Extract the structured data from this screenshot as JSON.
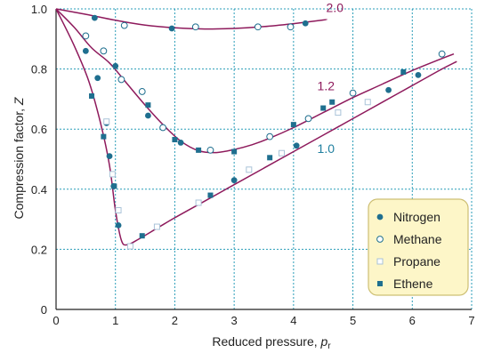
{
  "chart_data": {
    "type": "scatter",
    "xlabel_main": "Reduced pressure, ",
    "xlabel_italic": "p",
    "xlabel_sub": "r",
    "ylabel_main": "Compression factor, ",
    "ylabel_italic": "Z",
    "xlim": [
      0,
      7
    ],
    "ylim": [
      0,
      1.0
    ],
    "x_ticks": [
      "0",
      "1",
      "2",
      "3",
      "4",
      "5",
      "6",
      "7"
    ],
    "y_ticks": [
      "0",
      "0.2",
      "0.4",
      "0.6",
      "0.8",
      "1.0"
    ],
    "grid": true,
    "legend_position": "bottom-right",
    "colors": {
      "curve": "#8e1a5c",
      "grid": "#2a9db8",
      "marker": "#1f6f8f",
      "marker_light": "#a9c3d8",
      "legend_bg": "#fdf6c8",
      "legend_border": "#cdbf73",
      "label_2_0": "#8e1a5c",
      "label_1_2": "#8e1a5c",
      "label_1_0": "#1f7f9f"
    },
    "curves": [
      {
        "label": "2.0",
        "label_color_key": "label_2_0",
        "points": [
          [
            0,
            1.0
          ],
          [
            0.5,
            0.982
          ],
          [
            1.0,
            0.962
          ],
          [
            1.5,
            0.946
          ],
          [
            2.0,
            0.937
          ],
          [
            2.5,
            0.933
          ],
          [
            3.0,
            0.935
          ],
          [
            3.5,
            0.941
          ],
          [
            4.0,
            0.951
          ],
          [
            4.5,
            0.963
          ],
          [
            4.55,
            0.965
          ]
        ]
      },
      {
        "label": "1.2",
        "label_color_key": "label_1_2",
        "points": [
          [
            0,
            1.0
          ],
          [
            0.3,
            0.94
          ],
          [
            0.6,
            0.87
          ],
          [
            0.9,
            0.82
          ],
          [
            1.2,
            0.75
          ],
          [
            1.5,
            0.68
          ],
          [
            1.8,
            0.615
          ],
          [
            2.1,
            0.56
          ],
          [
            2.4,
            0.528
          ],
          [
            2.7,
            0.522
          ],
          [
            3.0,
            0.532
          ],
          [
            3.3,
            0.548
          ],
          [
            3.6,
            0.57
          ],
          [
            4.0,
            0.605
          ],
          [
            4.5,
            0.655
          ],
          [
            5.0,
            0.705
          ],
          [
            5.5,
            0.75
          ],
          [
            6.0,
            0.795
          ],
          [
            6.5,
            0.835
          ],
          [
            6.7,
            0.85
          ]
        ]
      },
      {
        "label": "1.0",
        "label_color_key": "label_1_0",
        "points": [
          [
            0,
            1.0
          ],
          [
            0.3,
            0.88
          ],
          [
            0.55,
            0.76
          ],
          [
            0.75,
            0.62
          ],
          [
            0.9,
            0.48
          ],
          [
            1.0,
            0.33
          ],
          [
            1.1,
            0.23
          ],
          [
            1.2,
            0.215
          ],
          [
            1.4,
            0.235
          ],
          [
            1.7,
            0.27
          ],
          [
            2.0,
            0.305
          ],
          [
            2.5,
            0.36
          ],
          [
            3.0,
            0.415
          ],
          [
            3.5,
            0.47
          ],
          [
            4.0,
            0.525
          ],
          [
            4.5,
            0.58
          ],
          [
            5.0,
            0.635
          ],
          [
            5.5,
            0.69
          ],
          [
            6.0,
            0.745
          ],
          [
            6.5,
            0.8
          ],
          [
            6.75,
            0.825
          ]
        ]
      }
    ],
    "label_positions": [
      {
        "label": "2.0",
        "x": 4.55,
        "y": 0.99
      },
      {
        "label": "1.2",
        "x": 4.4,
        "y": 0.73
      },
      {
        "label": "1.0",
        "x": 4.4,
        "y": 0.52
      }
    ],
    "series": [
      {
        "name": "Nitrogen",
        "marker": "filled-circle",
        "points": [
          [
            0.65,
            0.97
          ],
          [
            1.95,
            0.935
          ],
          [
            4.2,
            0.952
          ],
          [
            0.5,
            0.86
          ],
          [
            0.7,
            0.77
          ],
          [
            0.85,
            0.62
          ],
          [
            0.9,
            0.51
          ],
          [
            0.97,
            0.41
          ],
          [
            1.05,
            0.28
          ],
          [
            1.0,
            0.81
          ],
          [
            1.55,
            0.645
          ],
          [
            2.1,
            0.555
          ],
          [
            3.0,
            0.43
          ],
          [
            4.05,
            0.545
          ],
          [
            5.6,
            0.73
          ],
          [
            6.1,
            0.78
          ]
        ]
      },
      {
        "name": "Methane",
        "marker": "open-circle",
        "points": [
          [
            1.15,
            0.945
          ],
          [
            2.35,
            0.94
          ],
          [
            3.4,
            0.94
          ],
          [
            3.95,
            0.94
          ],
          [
            0.5,
            0.91
          ],
          [
            0.8,
            0.86
          ],
          [
            1.1,
            0.765
          ],
          [
            1.45,
            0.725
          ],
          [
            1.8,
            0.605
          ],
          [
            2.6,
            0.53
          ],
          [
            3.6,
            0.575
          ],
          [
            4.25,
            0.635
          ],
          [
            5.0,
            0.72
          ],
          [
            6.5,
            0.85
          ]
        ]
      },
      {
        "name": "Propane",
        "marker": "open-square",
        "points": [
          [
            0.85,
            0.625
          ],
          [
            0.95,
            0.45
          ],
          [
            1.05,
            0.33
          ],
          [
            1.25,
            0.21
          ],
          [
            1.7,
            0.275
          ],
          [
            2.4,
            0.355
          ],
          [
            3.25,
            0.465
          ],
          [
            3.8,
            0.52
          ],
          [
            4.75,
            0.655
          ],
          [
            5.25,
            0.69
          ]
        ]
      },
      {
        "name": "Ethene",
        "marker": "filled-square",
        "points": [
          [
            0.6,
            0.71
          ],
          [
            0.8,
            0.575
          ],
          [
            0.98,
            0.41
          ],
          [
            1.45,
            0.245
          ],
          [
            2.6,
            0.38
          ],
          [
            1.55,
            0.68
          ],
          [
            2.0,
            0.565
          ],
          [
            2.4,
            0.53
          ],
          [
            3.0,
            0.525
          ],
          [
            3.6,
            0.505
          ],
          [
            4.0,
            0.615
          ],
          [
            4.5,
            0.67
          ],
          [
            4.65,
            0.69
          ],
          [
            5.85,
            0.79
          ]
        ]
      }
    ]
  }
}
